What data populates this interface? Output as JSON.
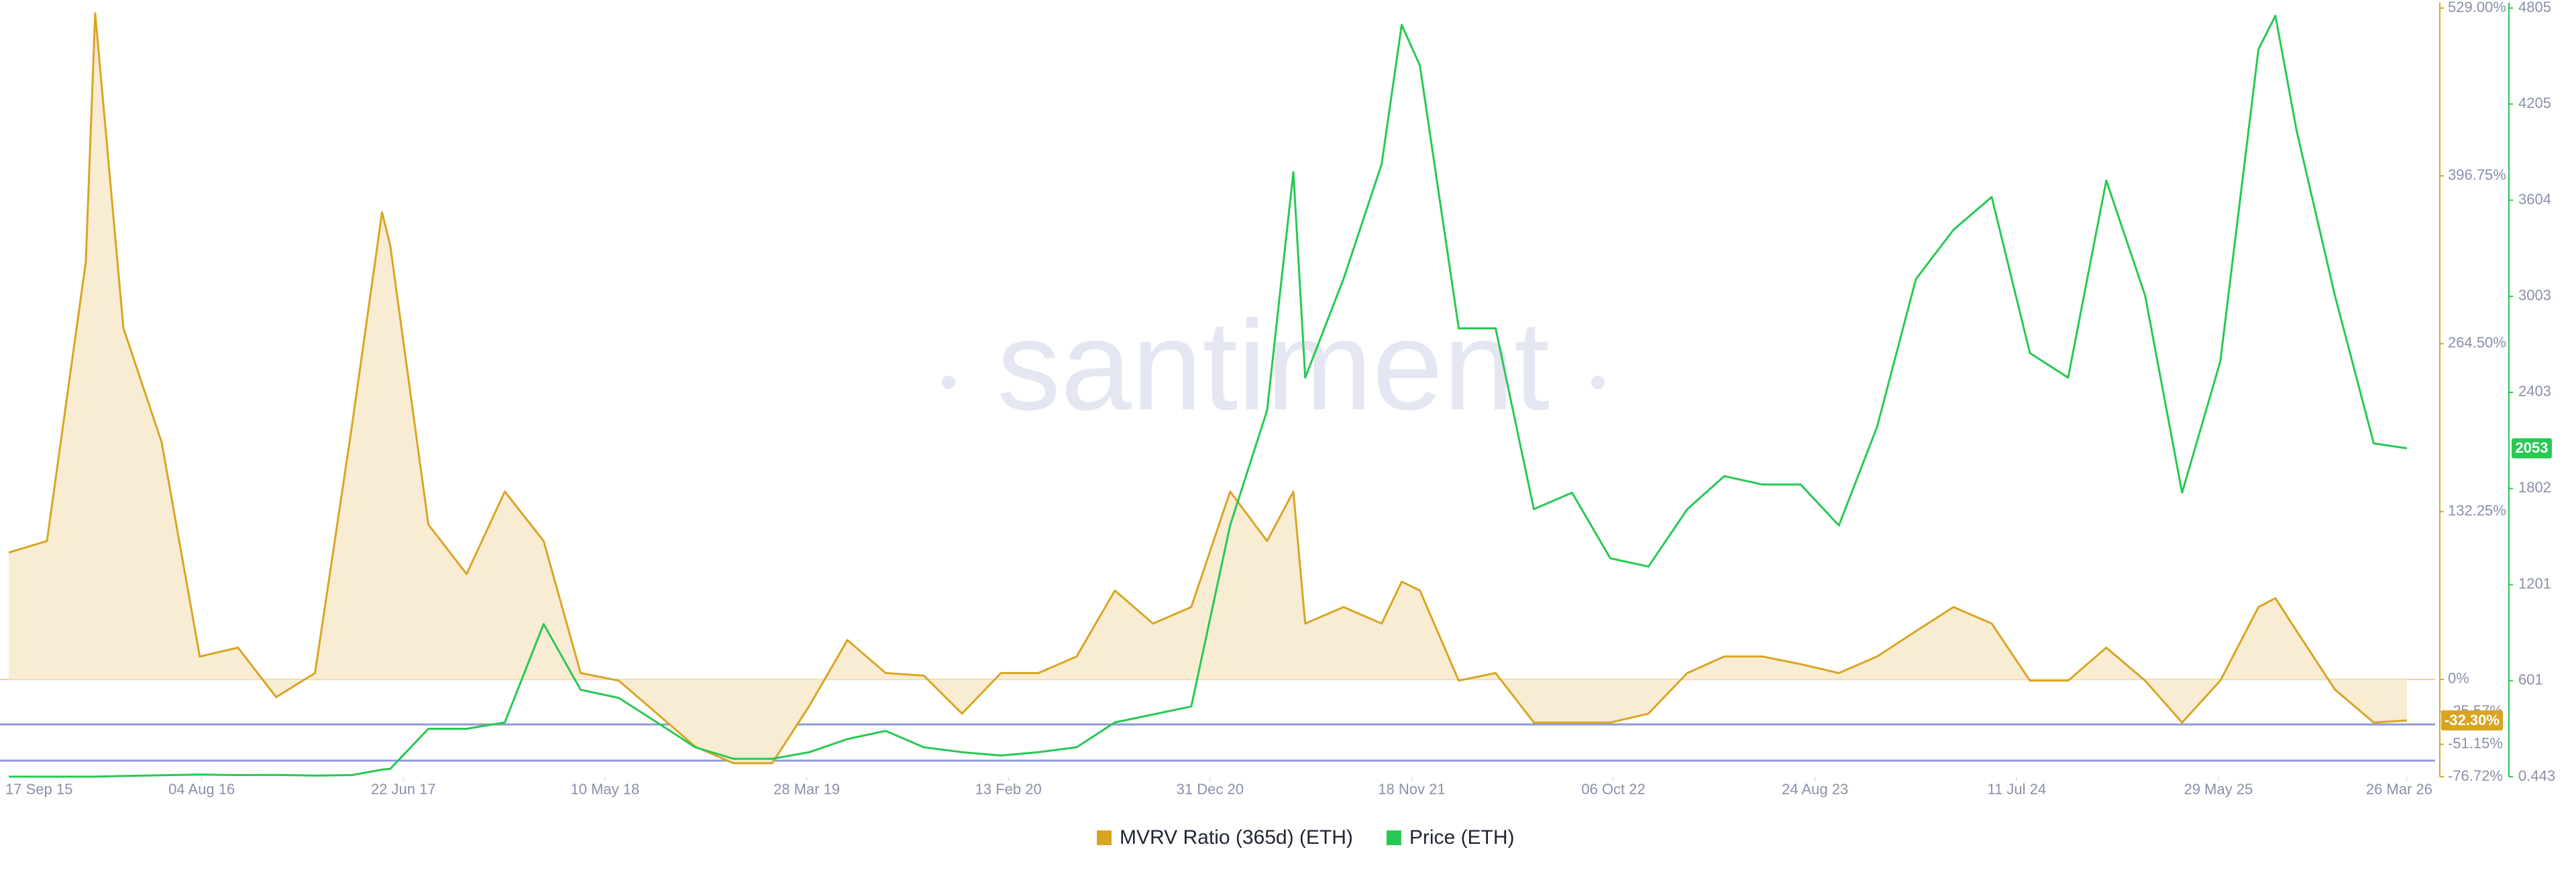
{
  "chart_data": {
    "type": "line",
    "watermark": "santiment",
    "x": [
      "2015-10-01",
      "2015-12-01",
      "2016-02-01",
      "2016-02-16",
      "2016-04-01",
      "2016-06-01",
      "2016-08-01",
      "2016-10-01",
      "2016-12-01",
      "2017-02-01",
      "2017-04-01",
      "2017-05-19",
      "2017-06-01",
      "2017-08-01",
      "2017-10-01",
      "2017-12-01",
      "2018-02-01",
      "2018-04-01",
      "2018-06-01",
      "2018-08-01",
      "2018-10-01",
      "2018-12-01",
      "2019-02-01",
      "2019-04-01",
      "2019-06-01",
      "2019-08-01",
      "2019-10-01",
      "2019-12-01",
      "2020-02-01",
      "2020-04-01",
      "2020-06-01",
      "2020-08-01",
      "2020-10-01",
      "2020-12-01",
      "2021-02-01",
      "2021-04-01",
      "2021-05-13",
      "2021-06-01",
      "2021-08-01",
      "2021-10-01",
      "2021-11-02",
      "2021-12-01",
      "2022-02-01",
      "2022-04-01",
      "2022-06-01",
      "2022-08-01",
      "2022-10-01",
      "2022-12-01",
      "2023-02-01",
      "2023-04-01",
      "2023-06-01",
      "2023-08-01",
      "2023-10-01",
      "2023-12-01",
      "2024-02-01",
      "2024-04-01",
      "2024-06-01",
      "2024-08-01",
      "2024-10-01",
      "2024-12-01",
      "2025-02-01",
      "2025-04-01",
      "2025-06-01",
      "2025-08-01",
      "2025-08-28",
      "2025-10-01",
      "2025-12-01",
      "2026-02-01",
      "2026-03-26"
    ],
    "series": [
      {
        "name": "MVRV Ratio (365d) (ETH)",
        "color": "#d9a521",
        "fill": "#f8ecd3",
        "axis": "y",
        "last_label": "-32.30%",
        "values": [
          100,
          109,
          329,
          525,
          277,
          187,
          18,
          25,
          -14,
          5,
          200,
          368,
          342,
          122,
          83,
          148,
          109,
          5,
          -1,
          -27,
          -53,
          -66,
          -66,
          -21,
          31,
          5,
          3,
          -27,
          5,
          5,
          18,
          70,
          44,
          57,
          148,
          109,
          148,
          44,
          57,
          44,
          77,
          70,
          -1,
          5,
          -34,
          -34,
          -34,
          -27,
          5,
          18,
          18,
          12,
          5,
          18,
          38,
          57,
          44,
          -1,
          -1,
          25,
          -1,
          -34,
          -1,
          57,
          64,
          38,
          -8,
          -34,
          -32.3
        ]
      },
      {
        "name": "Price (ETH)",
        "color": "#26c953",
        "axis": "y2",
        "values": [
          0.7,
          1,
          1,
          1,
          5,
          10,
          14,
          11,
          12,
          8,
          11,
          45,
          50,
          300,
          300,
          340,
          955,
          544,
          493,
          340,
          185,
          113,
          113,
          154,
          236,
          287,
          185,
          154,
          133,
          154,
          185,
          340,
          390,
          440,
          1571,
          2290,
          3780,
          2495,
          3111,
          3830,
          4700,
          4446,
          2803,
          2803,
          1673,
          1776,
          1366,
          1314,
          1673,
          1879,
          1827,
          1827,
          1571,
          2187,
          3111,
          3419,
          3624,
          2649,
          2495,
          3727,
          3008,
          1776,
          2597,
          4548,
          4757,
          4035,
          3008,
          2084,
          2053
        ]
      }
    ],
    "xlim": [
      "2015-09-17",
      "2026-05-10"
    ],
    "xticks": [
      {
        "value": "2015-09-17",
        "label": "17 Sep 15"
      },
      {
        "value": "2016-08-04",
        "label": "04 Aug 16"
      },
      {
        "value": "2017-06-22",
        "label": "22 Jun 17"
      },
      {
        "value": "2018-05-10",
        "label": "10 May 18"
      },
      {
        "value": "2019-03-28",
        "label": "28 Mar 19"
      },
      {
        "value": "2020-02-13",
        "label": "13 Feb 20"
      },
      {
        "value": "2020-12-31",
        "label": "31 Dec 20"
      },
      {
        "value": "2021-11-18",
        "label": "18 Nov 21"
      },
      {
        "value": "2022-10-06",
        "label": "06 Oct 22"
      },
      {
        "value": "2023-08-24",
        "label": "24 Aug 23"
      },
      {
        "value": "2024-07-11",
        "label": "11 Jul 24"
      },
      {
        "value": "2025-05-29",
        "label": "29 May 25"
      },
      {
        "value": "2026-03-26",
        "label": "26 Mar 26"
      }
    ],
    "ylim": [
      -76.72,
      529
    ],
    "yticks": [
      {
        "value": 529,
        "label": "529.00%"
      },
      {
        "value": 396.75,
        "label": "396.75%"
      },
      {
        "value": 264.5,
        "label": "264.50%"
      },
      {
        "value": 132.25,
        "label": "132.25%"
      },
      {
        "value": 0,
        "label": "0%"
      },
      {
        "value": -25.57,
        "label": "-25.57%"
      },
      {
        "value": -51.15,
        "label": "-51.15%"
      },
      {
        "value": -76.72,
        "label": "-76.72%"
      }
    ],
    "y2lim": [
      0.443,
      4805
    ],
    "y2ticks": [
      0.443,
      601,
      1201,
      1802,
      2403,
      3003,
      3604,
      4205,
      4805
    ],
    "grid": false,
    "legend": "bottom"
  }
}
